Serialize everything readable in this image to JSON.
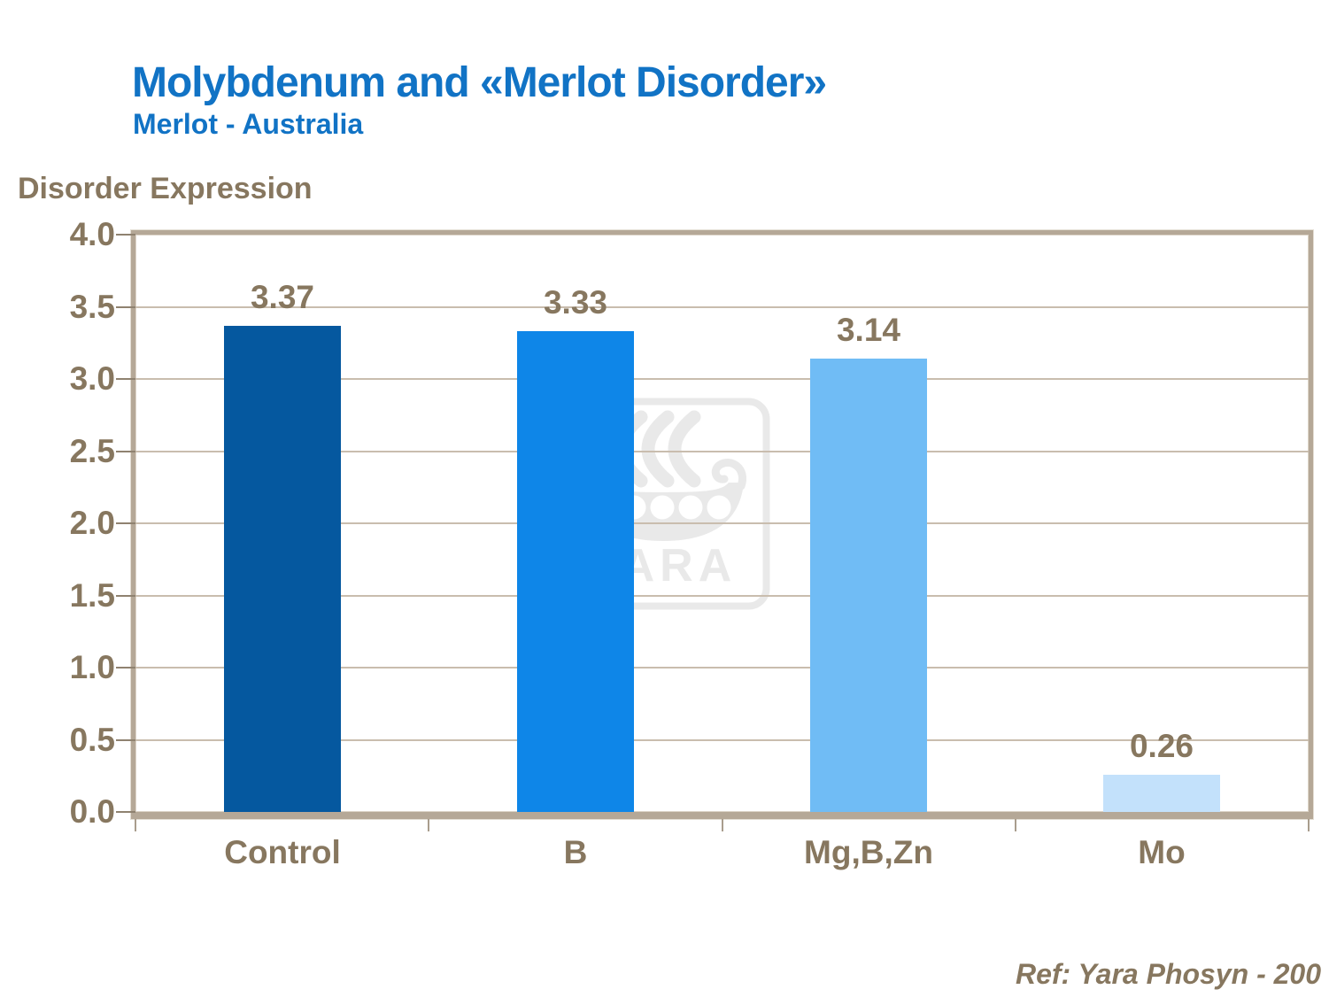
{
  "page": {
    "title": "Molybdenum and «Merlot Disorder»",
    "subtitle": "Merlot - Australia",
    "reference": "Ref: Yara Phosyn - 200"
  },
  "colors": {
    "title_blue": "#1173C5",
    "text_brown": "#87775F",
    "gridline_tan": "#C9BDAE",
    "plot_border_tan": "#B5A897",
    "ytick_line": "#8F8270",
    "xtick_line": "#A99D8D",
    "watermark_gray": "#E9E9E9",
    "background": "#FFFFFF"
  },
  "watermark": {
    "name": "yara-logo",
    "text": "YARA"
  },
  "chart_data": {
    "type": "bar",
    "title": "Disorder Expression",
    "xlabel": "",
    "ylabel": "Disorder Expression",
    "categories": [
      "Control",
      "B",
      "Mg,B,Zn",
      "Mo"
    ],
    "values": [
      3.37,
      3.33,
      3.14,
      0.26
    ],
    "value_labels": [
      "3.37",
      "3.33",
      "3.14",
      "0.26"
    ],
    "bar_colors": [
      "#05589F",
      "#0E86E8",
      "#70BCF5",
      "#C3E1FB"
    ],
    "ylim": [
      0,
      4
    ],
    "ytick_step": 0.5,
    "ytick_labels": [
      "4.0",
      "3.5",
      "3.0",
      "2.5",
      "2.0",
      "1.5",
      "1.0",
      "0.5",
      "0.0"
    ],
    "grid": true,
    "legend": false
  }
}
